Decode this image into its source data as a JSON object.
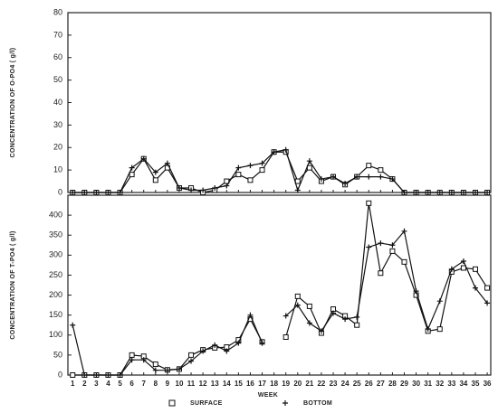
{
  "chart_data": {
    "type": "line",
    "xlabel": "WEEK",
    "x": [
      1,
      2,
      3,
      4,
      5,
      6,
      7,
      8,
      9,
      10,
      11,
      12,
      13,
      14,
      15,
      16,
      17,
      18,
      19,
      20,
      21,
      22,
      23,
      24,
      25,
      26,
      27,
      28,
      29,
      30,
      31,
      32,
      33,
      34,
      35,
      36
    ],
    "xlim": [
      0.6,
      36.3
    ],
    "xticks": [
      1,
      2,
      3,
      4,
      5,
      6,
      7,
      8,
      9,
      10,
      11,
      12,
      13,
      14,
      15,
      16,
      17,
      18,
      19,
      20,
      21,
      22,
      23,
      24,
      25,
      26,
      27,
      28,
      29,
      30,
      31,
      32,
      33,
      34,
      35,
      36
    ],
    "series": [
      {
        "name": "SURFACE",
        "marker": "square",
        "color": "#111"
      },
      {
        "name": "BOTTOM",
        "marker": "plus",
        "color": "#111"
      }
    ],
    "panels": [
      {
        "ylabel": "CONCENTRATION OF O-PO4 ( g/l)",
        "ylim": [
          0,
          80
        ],
        "yticks": [
          0,
          10,
          20,
          30,
          40,
          50,
          60,
          70,
          80
        ],
        "series": [
          {
            "values": [
              0,
              0,
              0,
              0,
              0,
              8,
              15,
              5.5,
              11,
              2,
              2,
              0,
              1,
              5,
              8,
              5.5,
              10,
              18,
              18,
              5,
              11,
              5,
              7,
              3.5,
              7,
              12,
              10,
              6,
              0,
              0,
              0,
              0,
              0,
              0,
              0,
              0
            ]
          },
          {
            "values": [
              0,
              0,
              0,
              0,
              0,
              11,
              15,
              9,
              13,
              2,
              1,
              1,
              2,
              3,
              11,
              12,
              13,
              18,
              19,
              1,
              14,
              6,
              7,
              4,
              7,
              7,
              7,
              6,
              0,
              0,
              0,
              0,
              0,
              0,
              0,
              0
            ]
          }
        ]
      },
      {
        "ylabel": "CONCENTRATION OF T-PO4 ( g/l)",
        "ylim": [
          0,
          450
        ],
        "yticks": [
          0,
          50,
          100,
          150,
          200,
          250,
          300,
          350,
          400
        ],
        "series": [
          {
            "values": [
              0,
              0,
              0,
              0,
              0,
              50,
              47,
              27,
              13,
              15,
              50,
              63,
              68,
              70,
              88,
              140,
              83,
              null,
              95,
              197,
              172,
              105,
              165,
              148,
              125,
              430,
              255,
              310,
              283,
              200,
              110,
              115,
              258,
              268,
              265,
              218
            ]
          },
          {
            "values": [
              125,
              0,
              0,
              0,
              0,
              38,
              38,
              12,
              12,
              15,
              35,
              60,
              75,
              60,
              80,
              150,
              80,
              null,
              148,
              175,
              130,
              110,
              155,
              140,
              145,
              320,
              330,
              325,
              360,
              210,
              115,
              185,
              265,
              285,
              218,
              180
            ]
          }
        ]
      }
    ]
  }
}
